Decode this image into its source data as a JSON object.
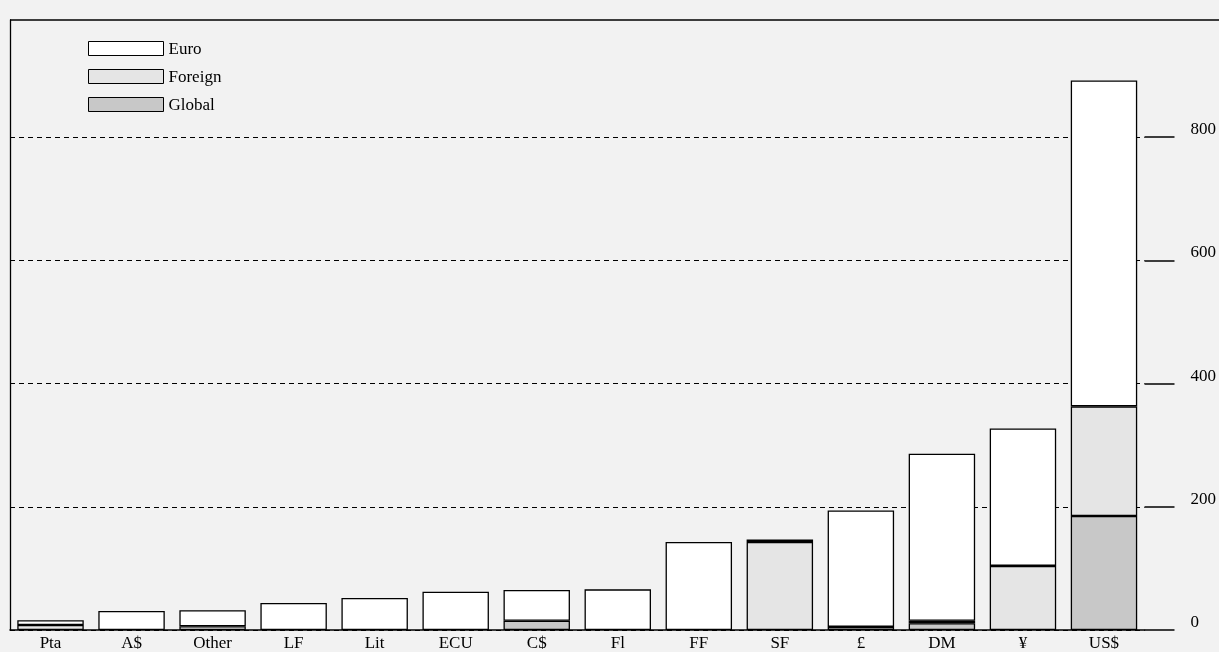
{
  "chart_data": {
    "type": "bar",
    "stacked": true,
    "categories": [
      "Pta",
      "A$",
      "Other",
      "LF",
      "Lit",
      "ECU",
      "C$",
      "Fl",
      "FF",
      "SF",
      "£",
      "DM",
      "¥",
      "US$"
    ],
    "series": [
      {
        "name": "Global",
        "color": "#c8c8c8",
        "values": [
          null,
          null,
          null,
          null,
          null,
          null,
          15,
          null,
          null,
          null,
          null,
          11,
          null,
          185
        ]
      },
      {
        "name": "Foreign",
        "color": "#e5e5e5",
        "values": [
          8,
          null,
          6,
          null,
          null,
          null,
          null,
          null,
          null,
          143,
          5,
          4,
          104,
          178
        ]
      },
      {
        "name": "Euro",
        "color": "#ffffff",
        "values": [
          8,
          31,
          26,
          44,
          52,
          62,
          50,
          66,
          143,
          4,
          189,
          271,
          223,
          529
        ]
      }
    ],
    "ylim": [
      0,
      990
    ],
    "yticks": [
      0,
      200,
      400,
      600,
      800
    ],
    "grid": "y",
    "legend": "top left"
  }
}
